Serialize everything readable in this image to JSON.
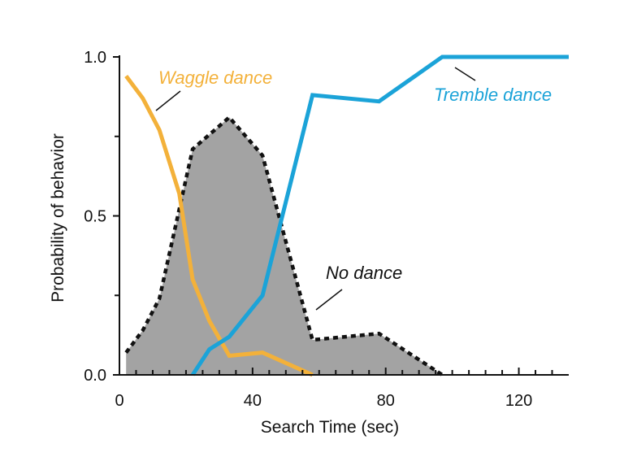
{
  "chart_data": {
    "type": "line",
    "title": "",
    "xlabel": "Search Time (sec)",
    "ylabel": "Probability of behavior",
    "xlim": [
      0,
      135
    ],
    "ylim": [
      0,
      1.0
    ],
    "x_ticks": [
      0,
      40,
      80,
      120
    ],
    "x_tick_labels": [
      "0",
      "40",
      "80",
      "120"
    ],
    "y_ticks": [
      0.0,
      0.5,
      1.0
    ],
    "y_tick_labels": [
      "0.0",
      "0.5",
      "1.0"
    ],
    "grid": false,
    "series": [
      {
        "name": "Waggle dance",
        "style": "line",
        "color": "#F3B13A",
        "x": [
          2,
          7,
          12,
          18,
          22,
          27,
          33,
          43,
          58
        ],
        "y": [
          0.94,
          0.87,
          0.77,
          0.57,
          0.3,
          0.17,
          0.06,
          0.07,
          0.0
        ]
      },
      {
        "name": "Tremble dance",
        "style": "line",
        "color": "#1BA3D8",
        "x": [
          22,
          27,
          33,
          43,
          58,
          78,
          97,
          135
        ],
        "y": [
          0.0,
          0.08,
          0.12,
          0.25,
          0.88,
          0.86,
          1.0,
          1.0
        ]
      },
      {
        "name": "No dance",
        "style": "area-dashed",
        "color": "#A3A3A3",
        "x": [
          2,
          7,
          12,
          22,
          33,
          43,
          58,
          78,
          97
        ],
        "y": [
          0.07,
          0.14,
          0.24,
          0.71,
          0.81,
          0.69,
          0.11,
          0.13,
          0.0
        ]
      }
    ]
  }
}
